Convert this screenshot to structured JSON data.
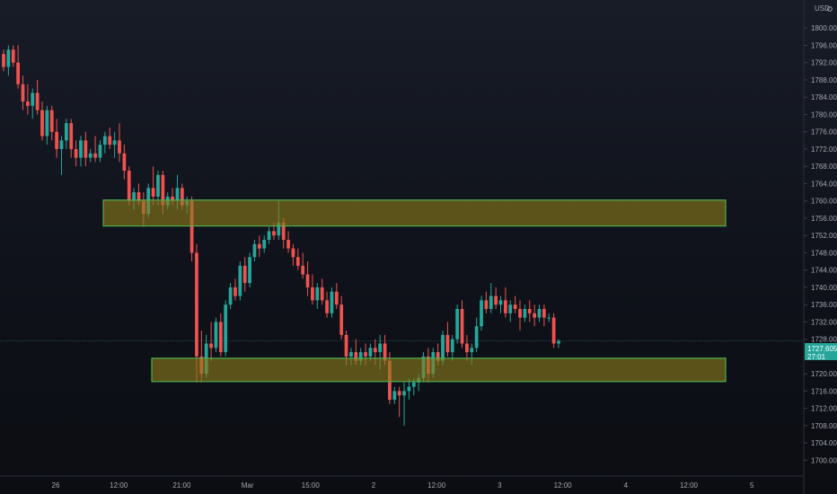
{
  "currency": "USD",
  "colors": {
    "up": "#26a69a",
    "down": "#ef5350",
    "zone_fill": "#8a7a1a",
    "zone_border": "#4caf50",
    "last_price_bg": "#26a69a",
    "axis_text": "#a3a6af"
  },
  "last_price": {
    "value": "1727.605",
    "countdown": "27:01"
  },
  "chart_data": {
    "type": "candlestick",
    "ylim": [
      1698,
      1804
    ],
    "y_ticks": [
      "1800.000",
      "1796.000",
      "1792.000",
      "1788.000",
      "1784.000",
      "1780.000",
      "1776.000",
      "1772.000",
      "1768.000",
      "1764.000",
      "1760.000",
      "1756.000",
      "1752.000",
      "1748.000",
      "1744.000",
      "1740.000",
      "1736.000",
      "1732.000",
      "1728.000",
      "1724.000",
      "1720.000",
      "1716.000",
      "1712.000",
      "1708.000",
      "1704.000",
      "1700.000"
    ],
    "x_ticks": [
      "26",
      "12:00",
      "21:00",
      "Mar",
      "15:00",
      "2",
      "12:00",
      "3",
      "12:00",
      "4",
      "12:00",
      "5"
    ],
    "zones": [
      {
        "low": 1754.2,
        "high": 1760.2
      },
      {
        "low": 1718.2,
        "high": 1723.6
      }
    ],
    "candles": [
      [
        1794,
        1795,
        1790,
        1791
      ],
      [
        1791,
        1796,
        1789,
        1795
      ],
      [
        1795,
        1796,
        1791,
        1792
      ],
      [
        1792,
        1796,
        1786,
        1787
      ],
      [
        1787,
        1789,
        1781,
        1783
      ],
      [
        1783,
        1787,
        1780,
        1782
      ],
      [
        1782,
        1786,
        1779,
        1785
      ],
      [
        1785,
        1788,
        1780,
        1781
      ],
      [
        1781,
        1783,
        1774,
        1775
      ],
      [
        1775,
        1782,
        1773,
        1781
      ],
      [
        1781,
        1782,
        1774,
        1776
      ],
      [
        1776,
        1779,
        1770,
        1772
      ],
      [
        1772,
        1775,
        1766,
        1774
      ],
      [
        1774,
        1779,
        1772,
        1778
      ],
      [
        1778,
        1779,
        1770,
        1772
      ],
      [
        1772,
        1774,
        1768,
        1770
      ],
      [
        1770,
        1775,
        1768,
        1774
      ],
      [
        1774,
        1776,
        1768,
        1770
      ],
      [
        1770,
        1772,
        1769,
        1771
      ],
      [
        1771,
        1775,
        1769,
        1770
      ],
      [
        1770,
        1774,
        1769,
        1773
      ],
      [
        1773,
        1776,
        1771,
        1775
      ],
      [
        1775,
        1777,
        1772,
        1773
      ],
      [
        1773,
        1776,
        1770,
        1774
      ],
      [
        1774,
        1778,
        1769,
        1771
      ],
      [
        1771,
        1773,
        1765,
        1767
      ],
      [
        1767,
        1768,
        1759,
        1760
      ],
      [
        1760,
        1763,
        1758,
        1762
      ],
      [
        1762,
        1764,
        1759,
        1760
      ],
      [
        1760,
        1762,
        1754,
        1757
      ],
      [
        1757,
        1764,
        1756,
        1763
      ],
      [
        1763,
        1768,
        1759,
        1761
      ],
      [
        1761,
        1767,
        1759,
        1766
      ],
      [
        1766,
        1767,
        1757,
        1759
      ],
      [
        1759,
        1762,
        1758,
        1761
      ],
      [
        1761,
        1763,
        1759,
        1760
      ],
      [
        1760,
        1766,
        1758,
        1763
      ],
      [
        1763,
        1764,
        1758,
        1759
      ],
      [
        1759,
        1761,
        1757,
        1760
      ],
      [
        1760,
        1761,
        1746,
        1748
      ],
      [
        1748,
        1750,
        1718,
        1724
      ],
      [
        1724,
        1730,
        1718,
        1720
      ],
      [
        1720,
        1729,
        1719,
        1727
      ],
      [
        1727,
        1732,
        1723,
        1726
      ],
      [
        1726,
        1733,
        1725,
        1732
      ],
      [
        1732,
        1734,
        1724,
        1725
      ],
      [
        1725,
        1737,
        1724,
        1736
      ],
      [
        1736,
        1741,
        1735,
        1740
      ],
      [
        1740,
        1742,
        1737,
        1738
      ],
      [
        1738,
        1746,
        1737,
        1745
      ],
      [
        1745,
        1747,
        1739,
        1741
      ],
      [
        1741,
        1748,
        1740,
        1747
      ],
      [
        1747,
        1751,
        1746,
        1750
      ],
      [
        1750,
        1752,
        1747,
        1749
      ],
      [
        1749,
        1752,
        1748,
        1751
      ],
      [
        1751,
        1754,
        1750,
        1753
      ],
      [
        1753,
        1755,
        1751,
        1752
      ],
      [
        1752,
        1760,
        1751,
        1755
      ],
      [
        1755,
        1756,
        1749,
        1751
      ],
      [
        1751,
        1753,
        1748,
        1749
      ],
      [
        1749,
        1750,
        1745,
        1747
      ],
      [
        1747,
        1749,
        1744,
        1745
      ],
      [
        1745,
        1748,
        1742,
        1743
      ],
      [
        1743,
        1746,
        1738,
        1740
      ],
      [
        1740,
        1743,
        1736,
        1737
      ],
      [
        1737,
        1741,
        1735,
        1740
      ],
      [
        1740,
        1742,
        1736,
        1737
      ],
      [
        1737,
        1739,
        1733,
        1734
      ],
      [
        1734,
        1740,
        1733,
        1739
      ],
      [
        1739,
        1741,
        1735,
        1736
      ],
      [
        1736,
        1738,
        1728,
        1729
      ],
      [
        1729,
        1730,
        1722,
        1724
      ],
      [
        1724,
        1726,
        1722,
        1725
      ],
      [
        1725,
        1728,
        1722,
        1723
      ],
      [
        1723,
        1726,
        1722,
        1725
      ],
      [
        1725,
        1727,
        1722,
        1724
      ],
      [
        1724,
        1727,
        1723,
        1726
      ],
      [
        1726,
        1728,
        1722,
        1725
      ],
      [
        1725,
        1729,
        1721,
        1727
      ],
      [
        1727,
        1729,
        1722,
        1723
      ],
      [
        1723,
        1725,
        1713,
        1714
      ],
      [
        1714,
        1717,
        1713,
        1716
      ],
      [
        1716,
        1717,
        1710,
        1715
      ],
      [
        1715,
        1718,
        1708,
        1716
      ],
      [
        1716,
        1719,
        1714,
        1717
      ],
      [
        1717,
        1719,
        1715,
        1718
      ],
      [
        1718,
        1720,
        1716,
        1719
      ],
      [
        1719,
        1725,
        1718,
        1724
      ],
      [
        1724,
        1726,
        1718,
        1720
      ],
      [
        1720,
        1726,
        1719,
        1725
      ],
      [
        1725,
        1727,
        1722,
        1723
      ],
      [
        1723,
        1730,
        1722,
        1729
      ],
      [
        1729,
        1732,
        1724,
        1725
      ],
      [
        1725,
        1729,
        1723,
        1728
      ],
      [
        1728,
        1736,
        1727,
        1735
      ],
      [
        1735,
        1737,
        1726,
        1727
      ],
      [
        1727,
        1729,
        1723,
        1725
      ],
      [
        1725,
        1727,
        1722,
        1726
      ],
      [
        1726,
        1733,
        1725,
        1731
      ],
      [
        1731,
        1738,
        1730,
        1737
      ],
      [
        1737,
        1739,
        1734,
        1735
      ],
      [
        1735,
        1741,
        1734,
        1738
      ],
      [
        1738,
        1740,
        1735,
        1736
      ],
      [
        1736,
        1738,
        1734,
        1737
      ],
      [
        1737,
        1740,
        1733,
        1734
      ],
      [
        1734,
        1737,
        1732,
        1736
      ],
      [
        1736,
        1738,
        1734,
        1735
      ],
      [
        1735,
        1737,
        1730,
        1733
      ],
      [
        1733,
        1736,
        1732,
        1735
      ],
      [
        1735,
        1737,
        1732,
        1734
      ],
      [
        1734,
        1736,
        1731,
        1733
      ],
      [
        1733,
        1736,
        1732,
        1735
      ],
      [
        1735,
        1736,
        1731,
        1733
      ],
      [
        1733,
        1734,
        1732,
        1733
      ],
      [
        1733,
        1734,
        1726,
        1727
      ],
      [
        1727,
        1728,
        1726,
        1727.6
      ]
    ]
  }
}
